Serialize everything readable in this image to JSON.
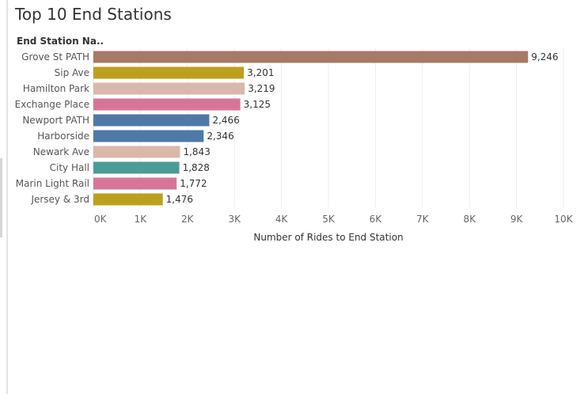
{
  "title": "Top 10 End Stations",
  "header": "End Station Na..",
  "chart_data": {
    "type": "bar",
    "orientation": "horizontal",
    "categories": [
      "Grove St PATH",
      "Sip Ave",
      "Hamilton Park",
      "Exchange Place",
      "Newport PATH",
      "Harborside",
      "Newark Ave",
      "City Hall",
      "Marin Light Rail",
      "Jersey & 3rd"
    ],
    "values": [
      9246,
      3201,
      3219,
      3125,
      2466,
      2346,
      1843,
      1828,
      1772,
      1476
    ],
    "value_labels": [
      "9,246",
      "3,201",
      "3,219",
      "3,125",
      "2,466",
      "2,346",
      "1,843",
      "1,828",
      "1,772",
      "1,476"
    ],
    "colors": [
      "#a67a64",
      "#bd9f1e",
      "#d9b8ab",
      "#d67599",
      "#4e79a7",
      "#4e79a7",
      "#d9b8ab",
      "#4a9c96",
      "#d67599",
      "#bd9f1e"
    ],
    "xticks": [
      0,
      1000,
      2000,
      3000,
      4000,
      5000,
      6000,
      7000,
      8000,
      9000,
      10000
    ],
    "xtick_labels": [
      "0K",
      "1K",
      "2K",
      "3K",
      "4K",
      "5K",
      "6K",
      "7K",
      "8K",
      "9K",
      "10K"
    ],
    "xlim": [
      0,
      10000
    ],
    "xlabel": "Number of Rides to End Station",
    "ylabel": "End Station Na..",
    "title": "Top 10 End Stations",
    "grid": "vertical"
  }
}
